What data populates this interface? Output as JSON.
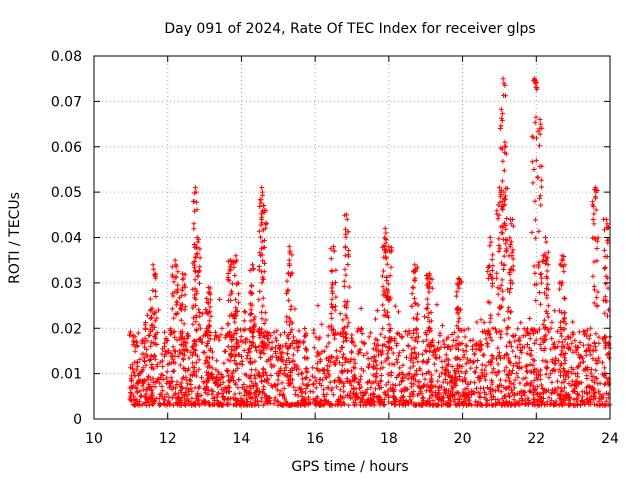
{
  "chart_data": {
    "type": "scatter",
    "title": "Day 091 of 2024, Rate Of TEC Index for receiver glps",
    "xlabel": "GPS time / hours",
    "ylabel": "ROTI / TECUs",
    "xlim": [
      10,
      24
    ],
    "ylim": [
      0,
      0.08
    ],
    "x_ticks": [
      "10",
      "12",
      "14",
      "16",
      "18",
      "20",
      "22",
      "24"
    ],
    "y_ticks": [
      "0",
      "0.01",
      "0.02",
      "0.03",
      "0.04",
      "0.05",
      "0.06",
      "0.07",
      "0.08"
    ],
    "grid": true,
    "marker": "+",
    "marker_color": "#ff0000",
    "series": [
      {
        "name": "ROTI",
        "peaks": [
          {
            "x": 11.6,
            "y": 0.034
          },
          {
            "x": 12.2,
            "y": 0.035
          },
          {
            "x": 12.4,
            "y": 0.032
          },
          {
            "x": 12.75,
            "y": 0.051
          },
          {
            "x": 12.8,
            "y": 0.04
          },
          {
            "x": 13.1,
            "y": 0.029
          },
          {
            "x": 13.7,
            "y": 0.035
          },
          {
            "x": 13.85,
            "y": 0.036
          },
          {
            "x": 14.3,
            "y": 0.034
          },
          {
            "x": 14.55,
            "y": 0.051
          },
          {
            "x": 14.6,
            "y": 0.047
          },
          {
            "x": 15.3,
            "y": 0.038
          },
          {
            "x": 16.5,
            "y": 0.038
          },
          {
            "x": 16.85,
            "y": 0.045
          },
          {
            "x": 17.9,
            "y": 0.042
          },
          {
            "x": 18.0,
            "y": 0.038
          },
          {
            "x": 18.7,
            "y": 0.034
          },
          {
            "x": 19.1,
            "y": 0.032
          },
          {
            "x": 19.9,
            "y": 0.031
          },
          {
            "x": 20.75,
            "y": 0.04
          },
          {
            "x": 21.0,
            "y": 0.051
          },
          {
            "x": 21.1,
            "y": 0.075
          },
          {
            "x": 21.15,
            "y": 0.061
          },
          {
            "x": 21.3,
            "y": 0.044
          },
          {
            "x": 21.95,
            "y": 0.075
          },
          {
            "x": 22.1,
            "y": 0.066
          },
          {
            "x": 22.25,
            "y": 0.04
          },
          {
            "x": 22.7,
            "y": 0.036
          },
          {
            "x": 23.6,
            "y": 0.051
          },
          {
            "x": 23.9,
            "y": 0.044
          }
        ]
      }
    ]
  }
}
